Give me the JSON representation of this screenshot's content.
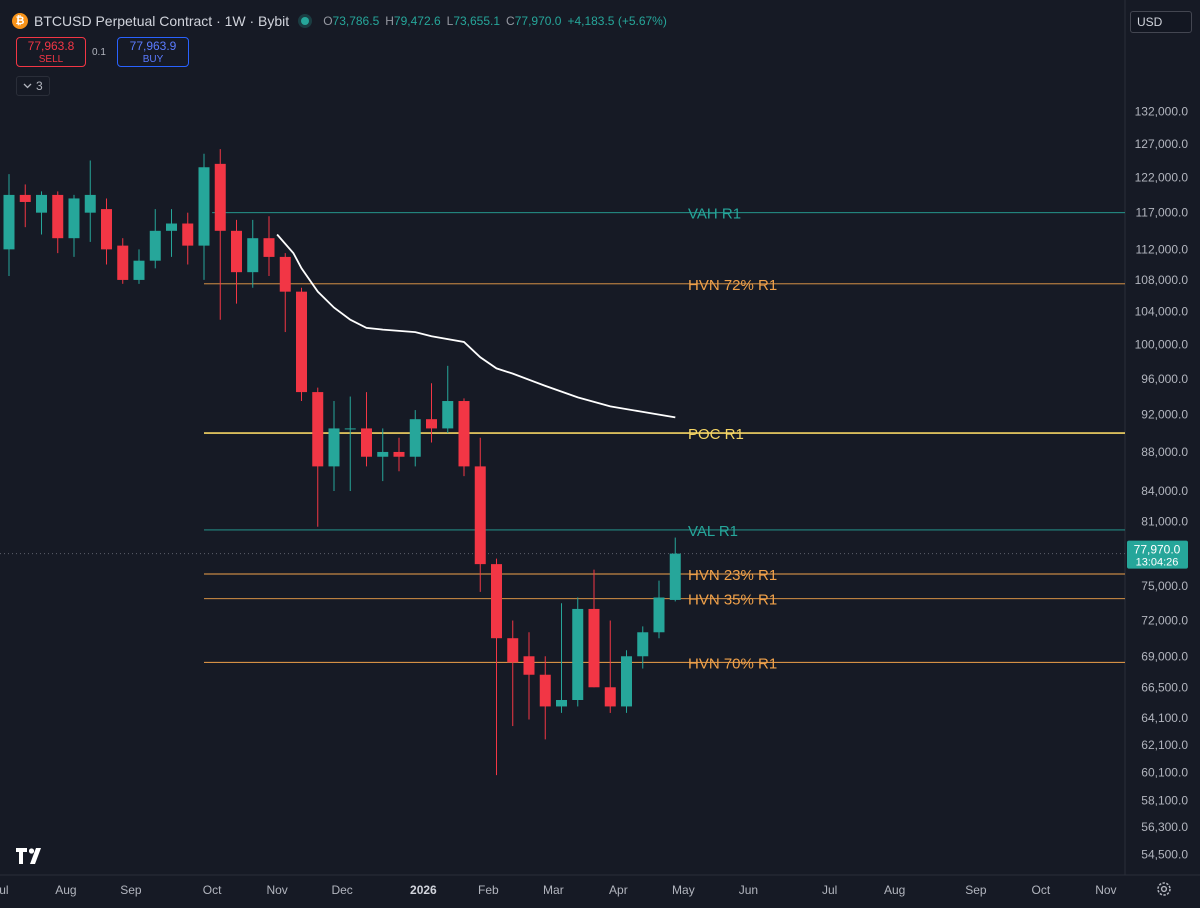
{
  "header": {
    "coin_icon": "bitcoin-icon",
    "symbol": "BTCUSD Perpetual Contract · 1W · Bybit",
    "ohlc": {
      "o_label": "O",
      "o": "73,786.5",
      "h_label": "H",
      "h": "79,472.6",
      "l_label": "L",
      "l": "73,655.1",
      "c_label": "C",
      "c": "77,970.0",
      "change": "+4,183.5 (+5.67%)"
    }
  },
  "trade": {
    "sell_price": "77,963.8",
    "sell_label": "SELL",
    "spread": "0.1",
    "buy_price": "77,963.9",
    "buy_label": "BUY"
  },
  "indicators_toggle": {
    "icon": "chevron-down-icon",
    "count": "3"
  },
  "currency": "USD",
  "colors": {
    "background": "#161a25",
    "up": "#26a69a",
    "down": "#f23645",
    "hvn": "#f0a14a",
    "poc": "#f5d565",
    "value_area": "#26a69a",
    "ma": "#ffffff"
  },
  "chart_data": {
    "type": "candlestick",
    "title": "BTCUSD Perpetual Contract · 1W · Bybit",
    "y_scale": "log",
    "ylim": [
      53500,
      142000
    ],
    "y_ticks": [
      {
        "value": 132000,
        "label": "132,000.0"
      },
      {
        "value": 127000,
        "label": "127,000.0"
      },
      {
        "value": 122000,
        "label": "122,000.0"
      },
      {
        "value": 117000,
        "label": "117,000.0"
      },
      {
        "value": 112000,
        "label": "112,000.0"
      },
      {
        "value": 108000,
        "label": "108,000.0"
      },
      {
        "value": 104000,
        "label": "104,000.0"
      },
      {
        "value": 100000,
        "label": "100,000.0"
      },
      {
        "value": 96000,
        "label": "96,000.0"
      },
      {
        "value": 92000,
        "label": "92,000.0"
      },
      {
        "value": 88000,
        "label": "88,000.0"
      },
      {
        "value": 84000,
        "label": "84,000.0"
      },
      {
        "value": 81000,
        "label": "81,000.0"
      },
      {
        "value": 75000,
        "label": "75,000.0"
      },
      {
        "value": 72000,
        "label": "72,000.0"
      },
      {
        "value": 69000,
        "label": "69,000.0"
      },
      {
        "value": 66500,
        "label": "66,500.0"
      },
      {
        "value": 64100,
        "label": "64,100.0"
      },
      {
        "value": 62100,
        "label": "62,100.0"
      },
      {
        "value": 60100,
        "label": "60,100.0"
      },
      {
        "value": 58100,
        "label": "58,100.0"
      },
      {
        "value": 56300,
        "label": "56,300.0"
      },
      {
        "value": 54500,
        "label": "54,500.0"
      }
    ],
    "x_ticks": [
      {
        "week": -0.5,
        "label": "Jul",
        "bold": false
      },
      {
        "week": 3.5,
        "label": "Aug",
        "bold": false
      },
      {
        "week": 7.5,
        "label": "Sep",
        "bold": false
      },
      {
        "week": 12.5,
        "label": "Oct",
        "bold": false
      },
      {
        "week": 16.5,
        "label": "Nov",
        "bold": false
      },
      {
        "week": 20.5,
        "label": "Dec",
        "bold": false
      },
      {
        "week": 25.5,
        "label": "2026",
        "bold": true
      },
      {
        "week": 29.5,
        "label": "Feb",
        "bold": false
      },
      {
        "week": 33.5,
        "label": "Mar",
        "bold": false
      },
      {
        "week": 37.5,
        "label": "Apr",
        "bold": false
      },
      {
        "week": 41.5,
        "label": "May",
        "bold": false
      },
      {
        "week": 45.5,
        "label": "Jun",
        "bold": false
      },
      {
        "week": 50.5,
        "label": "Jul",
        "bold": false
      },
      {
        "week": 54.5,
        "label": "Aug",
        "bold": false
      },
      {
        "week": 59.5,
        "label": "Sep",
        "bold": false
      },
      {
        "week": 63.5,
        "label": "Oct",
        "bold": false
      },
      {
        "week": 67.5,
        "label": "Nov",
        "bold": false
      }
    ],
    "candles": [
      {
        "o": 112000,
        "h": 122500,
        "l": 108500,
        "c": 119500
      },
      {
        "o": 119500,
        "h": 121000,
        "l": 115000,
        "c": 118500
      },
      {
        "o": 117000,
        "h": 120000,
        "l": 114000,
        "c": 119500
      },
      {
        "o": 119500,
        "h": 120000,
        "l": 111500,
        "c": 113500
      },
      {
        "o": 113500,
        "h": 119500,
        "l": 111000,
        "c": 119000
      },
      {
        "o": 117000,
        "h": 124500,
        "l": 113000,
        "c": 119500
      },
      {
        "o": 117500,
        "h": 119000,
        "l": 110000,
        "c": 112000
      },
      {
        "o": 112500,
        "h": 113500,
        "l": 107500,
        "c": 108000
      },
      {
        "o": 108000,
        "h": 112000,
        "l": 107500,
        "c": 110500
      },
      {
        "o": 110500,
        "h": 117500,
        "l": 109500,
        "c": 114500
      },
      {
        "o": 114500,
        "h": 117500,
        "l": 111000,
        "c": 115500
      },
      {
        "o": 115500,
        "h": 117000,
        "l": 110000,
        "c": 112500
      },
      {
        "o": 112500,
        "h": 125500,
        "l": 108000,
        "c": 123500
      },
      {
        "o": 124000,
        "h": 126200,
        "l": 103000,
        "c": 114500
      },
      {
        "o": 114500,
        "h": 116000,
        "l": 105000,
        "c": 109000
      },
      {
        "o": 109000,
        "h": 116000,
        "l": 107000,
        "c": 113500
      },
      {
        "o": 113500,
        "h": 116500,
        "l": 108500,
        "c": 111000
      },
      {
        "o": 111000,
        "h": 111500,
        "l": 101500,
        "c": 106500
      },
      {
        "o": 106500,
        "h": 107000,
        "l": 93500,
        "c": 94500
      },
      {
        "o": 94500,
        "h": 95000,
        "l": 80500,
        "c": 86500
      },
      {
        "o": 86500,
        "h": 93500,
        "l": 84000,
        "c": 90500
      },
      {
        "o": 90500,
        "h": 94000,
        "l": 84000,
        "c": 90500
      },
      {
        "o": 90500,
        "h": 94500,
        "l": 86500,
        "c": 87500
      },
      {
        "o": 87500,
        "h": 90500,
        "l": 85000,
        "c": 88000
      },
      {
        "o": 88000,
        "h": 89500,
        "l": 86000,
        "c": 87500
      },
      {
        "o": 87500,
        "h": 92500,
        "l": 86500,
        "c": 91500
      },
      {
        "o": 91500,
        "h": 95500,
        "l": 89000,
        "c": 90500
      },
      {
        "o": 90500,
        "h": 97500,
        "l": 90000,
        "c": 93500
      },
      {
        "o": 93500,
        "h": 93800,
        "l": 85500,
        "c": 86500
      },
      {
        "o": 86500,
        "h": 89500,
        "l": 74500,
        "c": 77000
      },
      {
        "o": 77000,
        "h": 77500,
        "l": 59900,
        "c": 70500
      },
      {
        "o": 70500,
        "h": 72000,
        "l": 63500,
        "c": 68500
      },
      {
        "o": 69000,
        "h": 71000,
        "l": 64000,
        "c": 67500
      },
      {
        "o": 67500,
        "h": 69000,
        "l": 62500,
        "c": 65000
      },
      {
        "o": 65000,
        "h": 73500,
        "l": 64500,
        "c": 65500
      },
      {
        "o": 65500,
        "h": 74000,
        "l": 65000,
        "c": 73000
      },
      {
        "o": 73000,
        "h": 76500,
        "l": 66500,
        "c": 66500
      },
      {
        "o": 66500,
        "h": 72000,
        "l": 64500,
        "c": 65000
      },
      {
        "o": 65000,
        "h": 69500,
        "l": 64500,
        "c": 69000
      },
      {
        "o": 69000,
        "h": 71500,
        "l": 68000,
        "c": 71000
      },
      {
        "o": 71000,
        "h": 75500,
        "l": 70500,
        "c": 74000
      },
      {
        "o": 73786.5,
        "h": 79472.6,
        "l": 73655.1,
        "c": 77970.0
      }
    ],
    "moving_average": [
      {
        "week": 16.5,
        "value": 114000
      },
      {
        "week": 17.5,
        "value": 111500
      },
      {
        "week": 18,
        "value": 109500
      },
      {
        "week": 19,
        "value": 106500
      },
      {
        "week": 20,
        "value": 104500
      },
      {
        "week": 21,
        "value": 103000
      },
      {
        "week": 22,
        "value": 102000
      },
      {
        "week": 23,
        "value": 101800
      },
      {
        "week": 25,
        "value": 101500
      },
      {
        "week": 26,
        "value": 101000
      },
      {
        "week": 28,
        "value": 100300
      },
      {
        "week": 29,
        "value": 98500
      },
      {
        "week": 30,
        "value": 97200
      },
      {
        "week": 31,
        "value": 96600
      },
      {
        "week": 33,
        "value": 95200
      },
      {
        "week": 35,
        "value": 93900
      },
      {
        "week": 37,
        "value": 92900
      },
      {
        "week": 39,
        "value": 92300
      },
      {
        "week": 41,
        "value": 91700
      }
    ],
    "levels": [
      {
        "label": "VAH R1",
        "price": 117000,
        "color": "#26a69a",
        "width": 0.8,
        "from_week": 12.5
      },
      {
        "label": "HVN 72% R1",
        "price": 107500,
        "color": "#f0a14a",
        "width": 0.9,
        "from_week": 12.0
      },
      {
        "label": "POC R1",
        "price": 90000,
        "color": "#f5d565",
        "width": 1.6,
        "from_week": 12.0
      },
      {
        "label": "VAL R1",
        "price": 80200,
        "color": "#26a69a",
        "width": 0.8,
        "from_week": 12.0
      },
      {
        "label": "HVN 23% R1",
        "price": 76100,
        "color": "#f0a14a",
        "width": 0.9,
        "from_week": 12.0
      },
      {
        "label": "HVN 35% R1",
        "price": 73900,
        "color": "#f0a14a",
        "width": 0.9,
        "from_week": 12.0
      },
      {
        "label": "HVN 70% R1",
        "price": 68500,
        "color": "#f0a14a",
        "width": 0.9,
        "from_week": 12.0
      }
    ],
    "current_price": {
      "value": 77970.0,
      "label": "77,970.0",
      "countdown": "13:04:26"
    }
  },
  "logo": "tradingview-logo",
  "settings_icon": "gear-icon"
}
